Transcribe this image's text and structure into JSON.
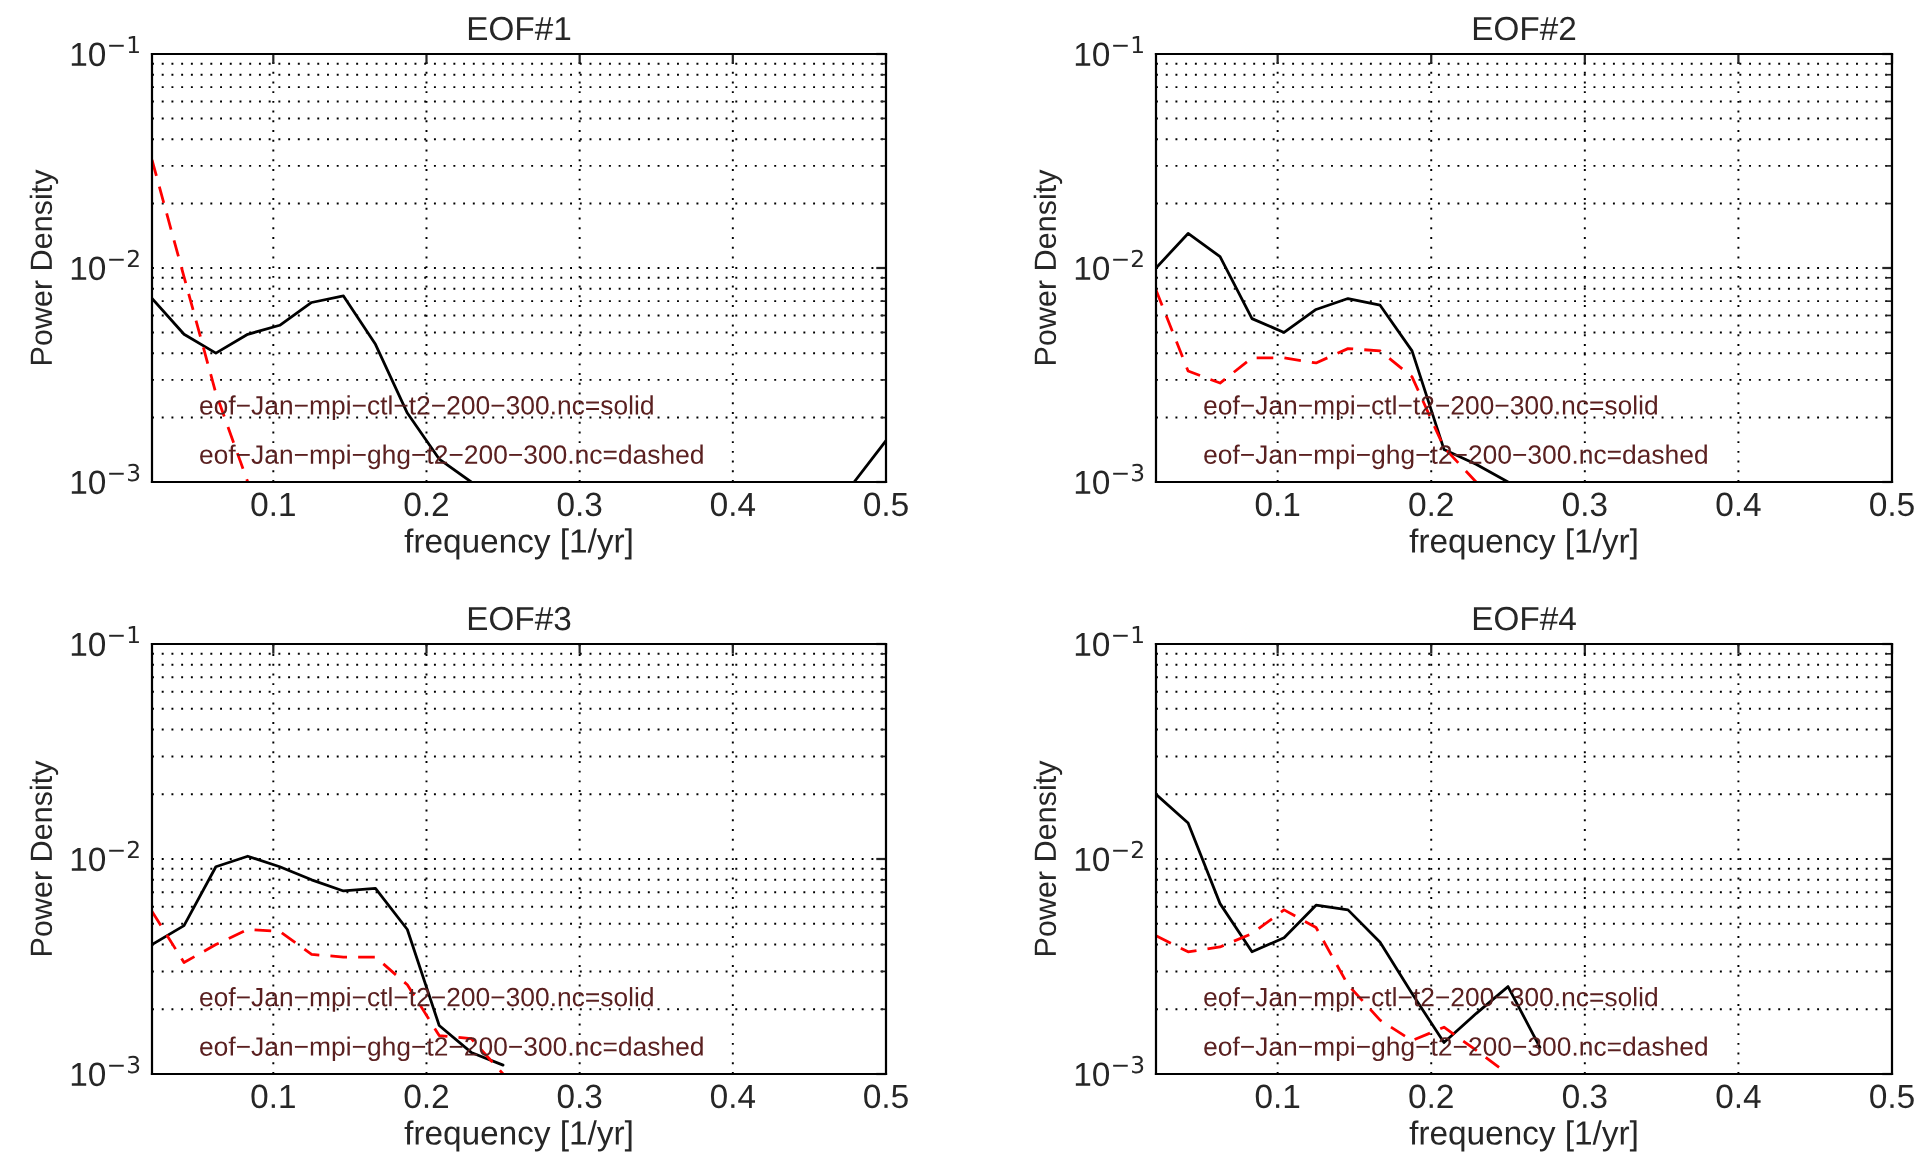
{
  "chart_data": [
    {
      "type": "line",
      "title": "EOF#1",
      "xlabel": "frequency [1/yr]",
      "ylabel": "Power Density",
      "log": "y",
      "grid": true,
      "xlim": [
        0.0208,
        0.5
      ],
      "ylim": [
        0.001,
        0.1
      ],
      "xticks": [
        0.1,
        0.2,
        0.3,
        0.4,
        0.5
      ],
      "yticks": [
        {
          "value": 0.001,
          "label": "10$^{−3}$"
        },
        {
          "value": 0.01,
          "label": "10$^{−2}$"
        },
        {
          "value": 0.1,
          "label": "10$^{−1}$"
        }
      ],
      "x": [
        0.0208,
        0.0417,
        0.0625,
        0.0833,
        0.1042,
        0.125,
        0.1458,
        0.1667,
        0.1875,
        0.2083,
        0.2292,
        0.25,
        0.2708,
        0.2917,
        0.3125,
        0.3333,
        0.3542,
        0.375,
        0.3958,
        0.4167,
        0.4375,
        0.4583,
        0.4792,
        0.5
      ],
      "series": [
        {
          "color": "#000000",
          "line_style": "solid",
          "values": [
            0.0072,
            0.0049,
            0.004,
            0.0049,
            0.0054,
            0.0069,
            0.0074,
            0.0044,
            0.0021,
            0.00128,
            0.001,
            null,
            null,
            null,
            null,
            null,
            null,
            null,
            null,
            null,
            null,
            null,
            0.001,
            0.00156
          ]
        },
        {
          "color": "#ff0000",
          "line_style": "dashed",
          "values": [
            0.032,
            0.0091,
            0.0026,
            0.001,
            null,
            null,
            null,
            null,
            null,
            null,
            null,
            null,
            null,
            null,
            null,
            null,
            null,
            null,
            null,
            null,
            null,
            null,
            null,
            null
          ]
        }
      ],
      "annotations": [
        "eof−Jan−mpi−ctl−t2−200−300.nc=solid",
        "eof−Jan−mpi−ghg−t2−200−300.nc=dashed"
      ]
    },
    {
      "type": "line",
      "title": "EOF#2",
      "xlabel": "frequency [1/yr]",
      "ylabel": "Power Density",
      "log": "y",
      "grid": true,
      "xlim": [
        0.0208,
        0.5
      ],
      "ylim": [
        0.001,
        0.1
      ],
      "xticks": [
        0.1,
        0.2,
        0.3,
        0.4,
        0.5
      ],
      "yticks": [
        {
          "value": 0.001,
          "label": "10$^{−3}$"
        },
        {
          "value": 0.01,
          "label": "10$^{−2}$"
        },
        {
          "value": 0.1,
          "label": "10$^{−1}$"
        }
      ],
      "x": [
        0.0208,
        0.0417,
        0.0625,
        0.0833,
        0.1042,
        0.125,
        0.1458,
        0.1667,
        0.1875,
        0.2083,
        0.2292,
        0.25
      ],
      "series": [
        {
          "color": "#000000",
          "line_style": "solid",
          "values": [
            0.01,
            0.0145,
            0.0113,
            0.0058,
            0.005,
            0.0064,
            0.0072,
            0.0067,
            0.0041,
            0.00142,
            0.00121,
            0.001
          ]
        },
        {
          "color": "#ff0000",
          "line_style": "dashed",
          "values": [
            0.0079,
            0.0033,
            0.0029,
            0.0038,
            0.0038,
            0.0036,
            0.0042,
            0.0041,
            0.0031,
            0.00145,
            0.001,
            null
          ]
        }
      ],
      "annotations": [
        "eof−Jan−mpi−ctl−t2−200−300.nc=solid",
        "eof−Jan−mpi−ghg−t2−200−300.nc=dashed"
      ]
    },
    {
      "type": "line",
      "title": "EOF#3",
      "xlabel": "frequency [1/yr]",
      "ylabel": "Power Density",
      "log": "y",
      "grid": true,
      "xlim": [
        0.0208,
        0.5
      ],
      "ylim": [
        0.001,
        0.1
      ],
      "xticks": [
        0.1,
        0.2,
        0.3,
        0.4,
        0.5
      ],
      "yticks": [
        {
          "value": 0.001,
          "label": "10$^{−3}$"
        },
        {
          "value": 0.01,
          "label": "10$^{−2}$"
        },
        {
          "value": 0.1,
          "label": "10$^{−1}$"
        }
      ],
      "x": [
        0.0208,
        0.0417,
        0.0625,
        0.0833,
        0.1042,
        0.125,
        0.1458,
        0.1667,
        0.1875,
        0.2083,
        0.2292,
        0.25
      ],
      "series": [
        {
          "color": "#000000",
          "line_style": "solid",
          "values": [
            0.004,
            0.0049,
            0.0092,
            0.0103,
            0.0092,
            0.008,
            0.0071,
            0.0073,
            0.0047,
            0.00168,
            0.00126,
            0.0011
          ]
        },
        {
          "color": "#ff0000",
          "line_style": "dashed",
          "values": [
            0.0057,
            0.0033,
            0.004,
            0.0047,
            0.0046,
            0.0036,
            0.0035,
            0.0035,
            0.0026,
            0.00151,
            0.00146,
            0.001
          ]
        }
      ],
      "annotations": [
        "eof−Jan−mpi−ctl−t2−200−300.nc=solid",
        "eof−Jan−mpi−ghg−t2−200−300.nc=dashed"
      ]
    },
    {
      "type": "line",
      "title": "EOF#4",
      "xlabel": "frequency [1/yr]",
      "ylabel": "Power Density",
      "log": "y",
      "grid": true,
      "xlim": [
        0.0208,
        0.5
      ],
      "ylim": [
        0.001,
        0.1
      ],
      "xticks": [
        0.1,
        0.2,
        0.3,
        0.4,
        0.5
      ],
      "yticks": [
        {
          "value": 0.001,
          "label": "10$^{−3}$"
        },
        {
          "value": 0.01,
          "label": "10$^{−2}$"
        },
        {
          "value": 0.1,
          "label": "10$^{−1}$"
        }
      ],
      "x": [
        0.0208,
        0.0417,
        0.0625,
        0.0833,
        0.1042,
        0.125,
        0.1458,
        0.1667,
        0.1875,
        0.2083,
        0.2292,
        0.25,
        0.2708
      ],
      "series": [
        {
          "color": "#000000",
          "line_style": "solid",
          "values": [
            0.02,
            0.0147,
            0.0062,
            0.0037,
            0.0043,
            0.0061,
            0.0058,
            0.0041,
            0.00237,
            0.0014,
            0.00191,
            0.00255,
            0.00133
          ]
        },
        {
          "color": "#ff0000",
          "line_style": "dashed",
          "values": [
            0.0044,
            0.0037,
            0.0039,
            0.0045,
            0.0058,
            0.0048,
            0.0026,
            0.00178,
            0.00143,
            0.00165,
            0.00129,
            0.001,
            null
          ]
        }
      ],
      "annotations": [
        "eof−Jan−mpi−ctl−t2−200−300.nc=solid",
        "eof−Jan−mpi−ghg−t2−200−300.nc=dashed"
      ]
    }
  ]
}
